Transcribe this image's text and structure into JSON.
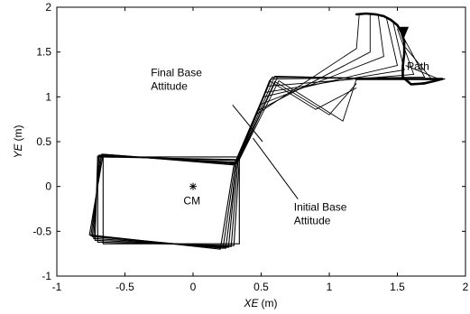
{
  "chart_data": {
    "type": "line",
    "title": "",
    "xlabel": {
      "var": "XE",
      "unit": "(m)"
    },
    "ylabel": {
      "var": "YE",
      "unit": "(m)"
    },
    "xlim": [
      -1,
      2
    ],
    "ylim": [
      -1,
      2
    ],
    "x_ticks": [
      -1,
      -0.5,
      0,
      0.5,
      1,
      1.5,
      2
    ],
    "y_ticks": [
      -1,
      -0.5,
      0,
      0.5,
      1,
      1.5,
      2
    ],
    "x_tick_labels": [
      "-1",
      "-0.5",
      "0",
      "0.5",
      "1",
      "1.5",
      "2"
    ],
    "y_tick_labels": [
      "-1",
      "-0.5",
      "0",
      "0.5",
      "1",
      "1.5",
      "2"
    ],
    "grid": false,
    "colors": {
      "line": "#000000",
      "background": "#ffffff"
    },
    "base_boxes": [
      [
        [
          -0.7,
          0.33
        ],
        [
          0.34,
          0.3
        ],
        [
          0.3,
          -0.66
        ],
        [
          -0.7,
          -0.62
        ]
      ],
      [
        [
          -0.7,
          0.34
        ],
        [
          0.33,
          0.29
        ],
        [
          0.28,
          -0.67
        ],
        [
          -0.72,
          -0.6
        ]
      ],
      [
        [
          -0.69,
          0.35
        ],
        [
          0.32,
          0.27
        ],
        [
          0.26,
          -0.68
        ],
        [
          -0.73,
          -0.58
        ]
      ],
      [
        [
          -0.68,
          0.35
        ],
        [
          0.32,
          0.26
        ],
        [
          0.24,
          -0.69
        ],
        [
          -0.74,
          -0.56
        ]
      ],
      [
        [
          -0.67,
          0.36
        ],
        [
          0.31,
          0.25
        ],
        [
          0.22,
          -0.69
        ],
        [
          -0.75,
          -0.55
        ]
      ],
      [
        [
          -0.66,
          0.36
        ],
        [
          0.3,
          0.24
        ],
        [
          0.2,
          -0.7
        ],
        [
          -0.76,
          -0.54
        ]
      ],
      [
        [
          -0.66,
          0.33
        ],
        [
          0.34,
          0.33
        ],
        [
          0.34,
          -0.64
        ],
        [
          -0.66,
          -0.64
        ]
      ]
    ],
    "links": [
      [
        [
          0.34,
          0.3
        ],
        [
          0.46,
          0.8
        ],
        [
          1.2,
          1.54
        ],
        [
          1.22,
          1.92
        ]
      ],
      [
        [
          0.33,
          0.29
        ],
        [
          0.48,
          0.85
        ],
        [
          1.3,
          1.5
        ],
        [
          1.3,
          1.92
        ]
      ],
      [
        [
          0.32,
          0.27
        ],
        [
          0.5,
          0.92
        ],
        [
          1.4,
          1.45
        ],
        [
          1.36,
          1.9
        ]
      ],
      [
        [
          0.32,
          0.26
        ],
        [
          0.52,
          1.0
        ],
        [
          1.5,
          1.35
        ],
        [
          1.42,
          1.88
        ]
      ],
      [
        [
          0.31,
          0.25
        ],
        [
          0.53,
          1.05
        ],
        [
          1.55,
          1.3
        ],
        [
          1.47,
          1.82
        ]
      ],
      [
        [
          0.3,
          0.24
        ],
        [
          0.55,
          1.12
        ],
        [
          1.62,
          1.25
        ],
        [
          1.5,
          1.76
        ]
      ],
      [
        [
          0.3,
          0.24
        ],
        [
          0.57,
          1.2
        ],
        [
          1.7,
          1.22
        ],
        [
          1.54,
          1.68
        ]
      ],
      [
        [
          0.32,
          0.27
        ],
        [
          0.58,
          1.22
        ],
        [
          1.75,
          1.2
        ],
        [
          1.56,
          1.55
        ]
      ],
      [
        [
          0.33,
          0.28
        ],
        [
          0.6,
          1.23
        ],
        [
          1.82,
          1.19
        ],
        [
          1.56,
          1.35
        ]
      ],
      [
        [
          0.34,
          0.3
        ],
        [
          0.62,
          1.22
        ],
        [
          1.85,
          1.2
        ],
        [
          1.62,
          1.14
        ]
      ],
      [
        [
          0.34,
          0.3
        ],
        [
          0.63,
          1.18
        ],
        [
          1.1,
          0.73
        ],
        [
          1.2,
          1.2
        ]
      ],
      [
        [
          0.34,
          0.31
        ],
        [
          0.6,
          1.17
        ],
        [
          1.0,
          0.8
        ],
        [
          1.2,
          1.15
        ]
      ],
      [
        [
          0.34,
          0.32
        ],
        [
          0.56,
          1.18
        ],
        [
          0.9,
          0.86
        ],
        [
          1.2,
          1.1
        ]
      ]
    ],
    "path": [
      [
        1.2,
        1.92
      ],
      [
        1.27,
        1.93
      ],
      [
        1.34,
        1.92
      ],
      [
        1.4,
        1.9
      ],
      [
        1.45,
        1.86
      ],
      [
        1.5,
        1.8
      ],
      [
        1.53,
        1.72
      ],
      [
        1.55,
        1.62
      ],
      [
        1.55,
        1.48
      ],
      [
        1.54,
        1.34
      ],
      [
        1.54,
        1.22
      ],
      [
        1.6,
        1.14
      ],
      [
        1.7,
        1.15
      ],
      [
        1.78,
        1.18
      ],
      [
        1.83,
        1.2
      ],
      [
        1.68,
        1.2
      ],
      [
        1.55,
        1.2
      ],
      [
        1.4,
        1.2
      ],
      [
        1.2,
        1.2
      ]
    ],
    "path_arrow": {
      "at": [
        1.55,
        1.69
      ],
      "direction": "down"
    },
    "cm_point": [
      0,
      0
    ],
    "annotations": [
      {
        "id": "final",
        "lines": [
          "Final Base",
          "Attitude"
        ],
        "text_at": [
          -0.31,
          1.23
        ],
        "anchor": "start",
        "leader_from": [
          0.29,
          0.91
        ],
        "leader_to": [
          0.51,
          0.5
        ]
      },
      {
        "id": "initial",
        "lines": [
          "Initial Base",
          "Attitude"
        ],
        "text_at": [
          0.74,
          -0.27
        ],
        "anchor": "start",
        "leader_from": [
          0.77,
          -0.14
        ],
        "leader_to": [
          0.44,
          0.54
        ]
      },
      {
        "id": "path",
        "lines": [
          "Path"
        ],
        "text_at": [
          1.57,
          1.3
        ],
        "anchor": "start"
      },
      {
        "id": "cm",
        "lines": [
          "CM"
        ],
        "text_at": [
          -0.07,
          -0.2
        ],
        "anchor": "start"
      }
    ]
  }
}
